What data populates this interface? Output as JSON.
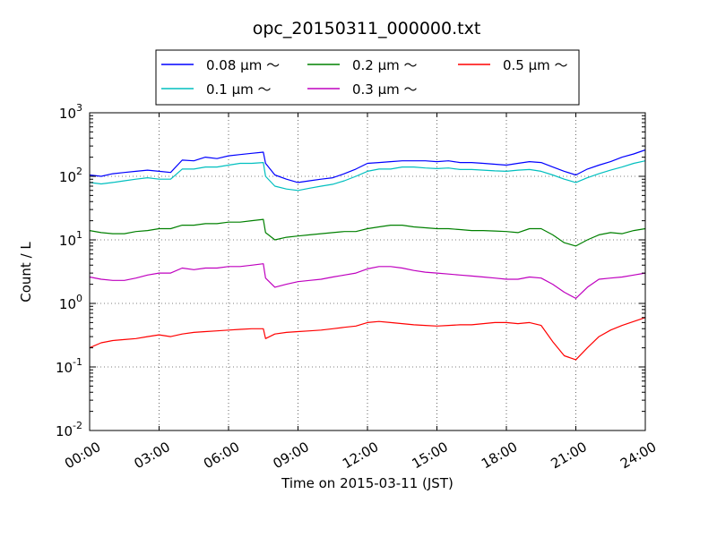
{
  "chart_data": {
    "type": "line",
    "title": "opc_20150311_000000.txt",
    "xlabel": "Time on 2015-03-11 (JST)",
    "ylabel": "Count / L",
    "y_scale": "log",
    "ylim": [
      0.01,
      1000
    ],
    "xlim": [
      "00:00",
      "24:00"
    ],
    "x_ticks": [
      "00:00",
      "03:00",
      "06:00",
      "09:00",
      "12:00",
      "15:00",
      "18:00",
      "21:00",
      "24:00"
    ],
    "y_ticks": [
      {
        "base": "10",
        "exp": "-2"
      },
      {
        "base": "10",
        "exp": "-1"
      },
      {
        "base": "10",
        "exp": "0"
      },
      {
        "base": "10",
        "exp": "1"
      },
      {
        "base": "10",
        "exp": "2"
      },
      {
        "base": "10",
        "exp": "3"
      }
    ],
    "grid": true,
    "legend_position": "top-center",
    "x_hours": [
      0,
      0.5,
      1,
      1.5,
      2,
      2.5,
      3,
      3.5,
      4,
      4.5,
      5,
      5.5,
      6,
      6.5,
      7,
      7.5,
      7.6,
      8,
      8.5,
      9,
      9.5,
      10,
      10.5,
      11,
      11.5,
      12,
      12.5,
      13,
      13.5,
      14,
      14.5,
      15,
      15.5,
      16,
      16.5,
      17,
      17.5,
      18,
      18.5,
      19,
      19.5,
      20,
      20.5,
      21,
      21.5,
      22,
      22.5,
      23,
      23.5,
      24
    ],
    "series": [
      {
        "name": "0.08 μm ～",
        "color": "#0000ff",
        "values": [
          105,
          100,
          110,
          115,
          120,
          125,
          120,
          115,
          180,
          175,
          200,
          190,
          210,
          220,
          230,
          240,
          160,
          105,
          90,
          80,
          85,
          90,
          95,
          110,
          130,
          160,
          165,
          170,
          175,
          175,
          175,
          170,
          175,
          165,
          165,
          160,
          155,
          150,
          160,
          170,
          165,
          140,
          120,
          105,
          130,
          150,
          170,
          200,
          225,
          260
        ]
      },
      {
        "name": "0.1 μm ～",
        "color": "#00bfbf",
        "values": [
          80,
          76,
          80,
          85,
          90,
          95,
          90,
          90,
          130,
          130,
          140,
          140,
          150,
          160,
          160,
          165,
          100,
          70,
          63,
          60,
          65,
          70,
          75,
          85,
          100,
          120,
          130,
          130,
          140,
          140,
          135,
          132,
          135,
          128,
          128,
          125,
          122,
          120,
          125,
          128,
          120,
          105,
          90,
          80,
          95,
          110,
          125,
          140,
          160,
          175
        ]
      },
      {
        "name": "0.2 μm ～",
        "color": "#008000",
        "values": [
          14,
          13,
          12.5,
          12.5,
          13.5,
          14,
          15,
          15,
          17,
          17,
          18,
          18,
          19,
          19,
          20,
          21,
          13,
          10,
          11,
          11.5,
          12,
          12.5,
          13,
          13.5,
          13.5,
          15,
          16,
          17,
          17,
          16,
          15.5,
          15,
          15,
          14.5,
          14,
          14,
          13.8,
          13.5,
          13,
          15,
          15,
          12,
          9,
          8,
          10,
          12,
          13,
          12.5,
          14,
          15
        ]
      },
      {
        "name": "0.3 μm ～",
        "color": "#bf00bf",
        "values": [
          2.6,
          2.4,
          2.3,
          2.3,
          2.5,
          2.8,
          3.0,
          3.0,
          3.6,
          3.4,
          3.6,
          3.6,
          3.8,
          3.8,
          4.0,
          4.2,
          2.5,
          1.8,
          2.0,
          2.2,
          2.3,
          2.4,
          2.6,
          2.8,
          3.0,
          3.5,
          3.8,
          3.8,
          3.6,
          3.3,
          3.1,
          3.0,
          2.9,
          2.8,
          2.7,
          2.6,
          2.5,
          2.4,
          2.4,
          2.6,
          2.5,
          2.0,
          1.5,
          1.2,
          1.8,
          2.4,
          2.5,
          2.6,
          2.8,
          3.0
        ]
      },
      {
        "name": "0.5 μm ～",
        "color": "#ff0000",
        "values": [
          0.2,
          0.24,
          0.26,
          0.27,
          0.28,
          0.3,
          0.32,
          0.3,
          0.33,
          0.35,
          0.36,
          0.37,
          0.38,
          0.39,
          0.4,
          0.4,
          0.28,
          0.33,
          0.35,
          0.36,
          0.37,
          0.38,
          0.4,
          0.42,
          0.44,
          0.5,
          0.52,
          0.5,
          0.48,
          0.46,
          0.45,
          0.44,
          0.45,
          0.46,
          0.46,
          0.48,
          0.5,
          0.5,
          0.48,
          0.5,
          0.45,
          0.25,
          0.15,
          0.13,
          0.2,
          0.3,
          0.38,
          0.45,
          0.52,
          0.6
        ]
      }
    ]
  }
}
